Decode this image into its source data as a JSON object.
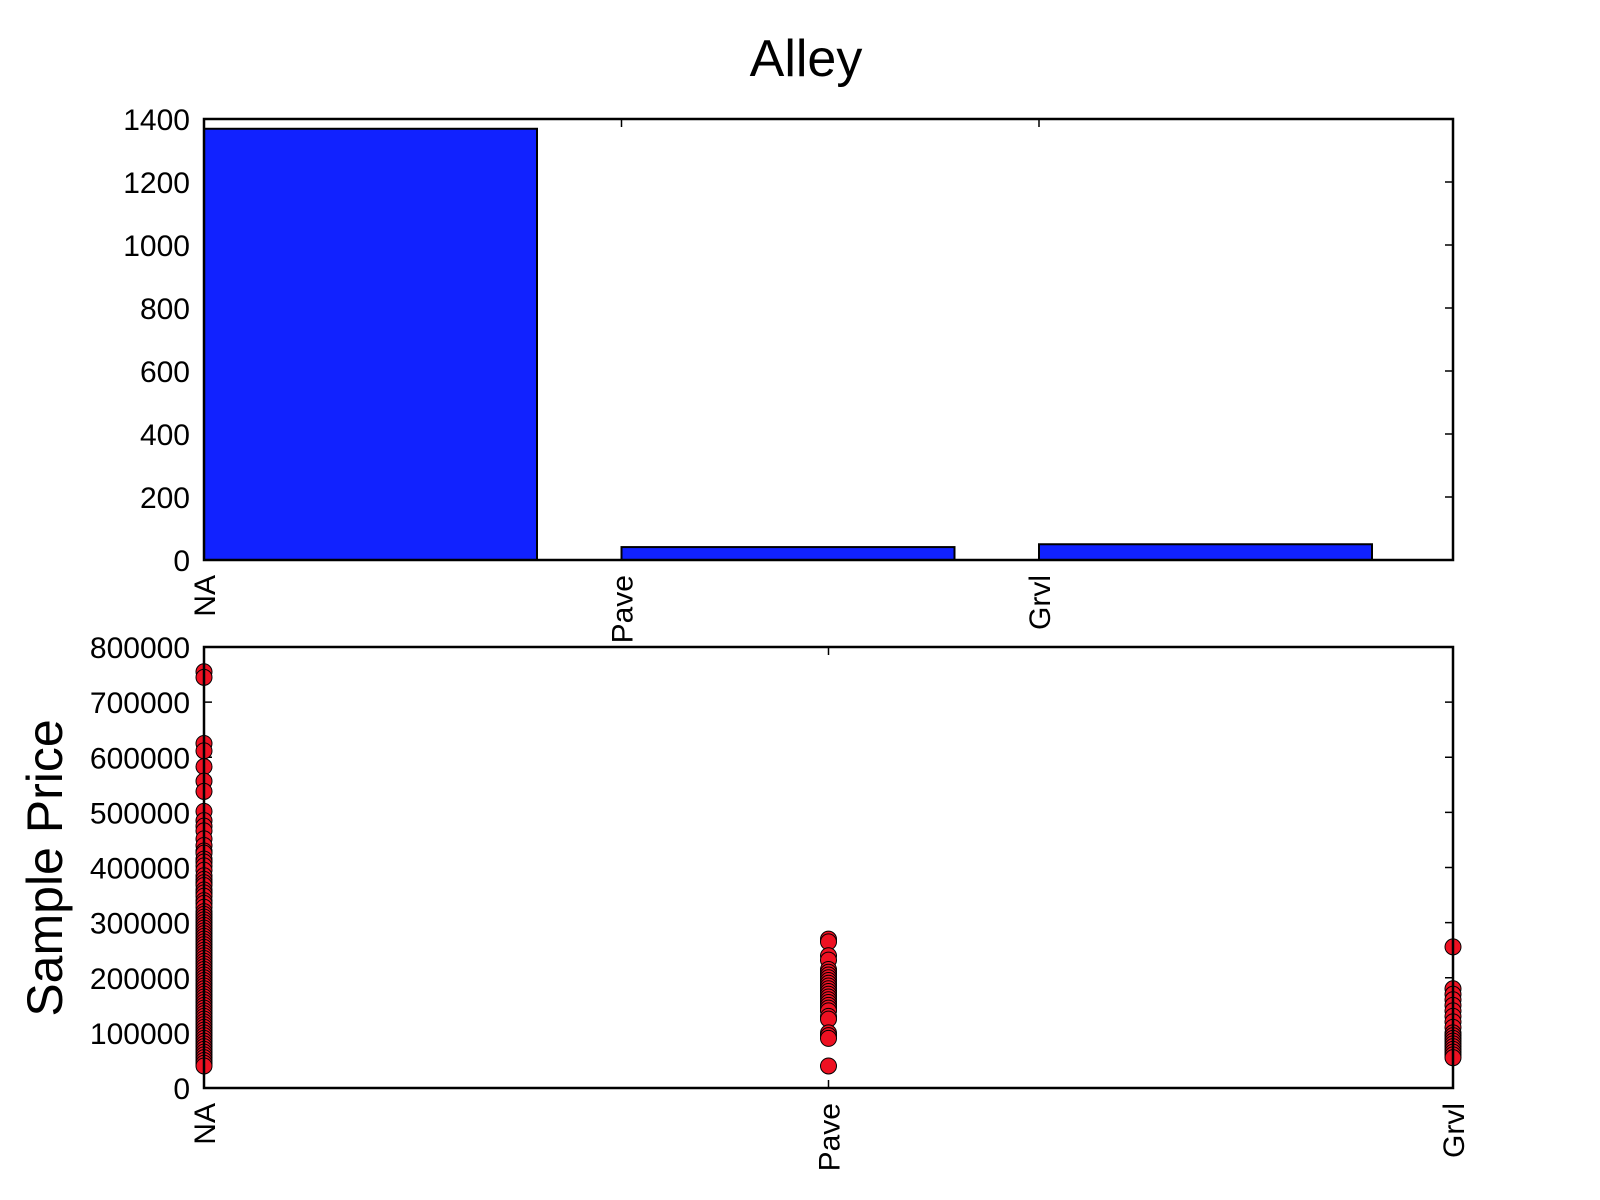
{
  "title": "Alley",
  "chart_data": [
    {
      "type": "bar",
      "categories": [
        "NA",
        "Pave",
        "Grvl"
      ],
      "values": [
        1369,
        41,
        50
      ],
      "xlabel": "",
      "ylabel": "",
      "ylim": [
        0,
        1400
      ],
      "yticks": [
        0,
        200,
        400,
        600,
        800,
        1000,
        1200,
        1400
      ],
      "grid": false,
      "color": "#1122ff"
    },
    {
      "type": "scatter",
      "categories": [
        "NA",
        "Pave",
        "Grvl"
      ],
      "xlabel": "",
      "ylabel": "Sample Price",
      "ylim": [
        0,
        800000
      ],
      "yticks": [
        0,
        100000,
        200000,
        300000,
        400000,
        500000,
        600000,
        700000,
        800000
      ],
      "grid": false,
      "color": "#ee1122",
      "series": [
        {
          "category": "NA",
          "values": [
            755000,
            745000,
            625000,
            611657,
            582933,
            556581,
            538000,
            501837,
            485000,
            475000,
            466500,
            451950,
            440000,
            430000,
            426000,
            415298,
            410000,
            402861,
            395000,
            385000,
            378500,
            372500,
            367294,
            359100,
            354000,
            348000,
            340000,
            335000,
            328000,
            320000,
            315000,
            310000,
            305000,
            300000,
            295000,
            290000,
            285000,
            280000,
            275000,
            270000,
            265000,
            260000,
            255000,
            250000,
            245000,
            240000,
            235000,
            230000,
            225000,
            220000,
            215000,
            210000,
            205000,
            200000,
            195000,
            190000,
            185000,
            180000,
            175000,
            170000,
            165000,
            160000,
            155000,
            150000,
            145000,
            140000,
            135000,
            130000,
            125000,
            120000,
            115000,
            110000,
            105000,
            100000,
            95000,
            90000,
            85000,
            80000,
            75000,
            70000,
            65000,
            60000,
            55000,
            50000,
            45000,
            40000
          ]
        },
        {
          "category": "Pave",
          "values": [
            270000,
            265000,
            240000,
            232000,
            215000,
            210000,
            205000,
            200000,
            195000,
            190000,
            185000,
            180000,
            175000,
            170000,
            165000,
            160000,
            155000,
            150000,
            145000,
            140000,
            130000,
            125000,
            100000,
            95000,
            90000,
            40000
          ]
        },
        {
          "category": "Grvl",
          "values": [
            256000,
            180000,
            170000,
            160000,
            150000,
            140000,
            130000,
            120000,
            110000,
            100000,
            95000,
            90000,
            85000,
            80000,
            75000,
            70000,
            65000,
            60000,
            55000
          ]
        }
      ]
    }
  ]
}
